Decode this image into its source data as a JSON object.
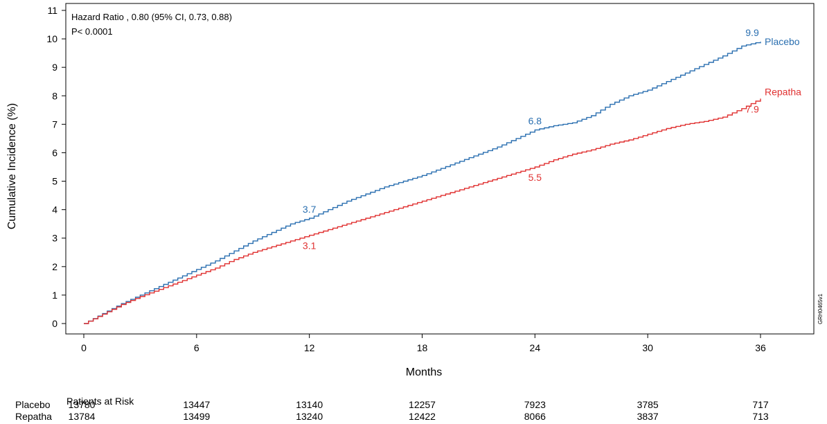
{
  "chart_data": {
    "type": "line",
    "xlabel": "Months",
    "ylabel": "Cumulative Incidence (%)",
    "xlim": [
      0,
      37.5
    ],
    "ylim": [
      0,
      11
    ],
    "xticks": [
      0,
      6,
      12,
      18,
      24,
      30,
      36
    ],
    "yticks": [
      0,
      1,
      2,
      3,
      4,
      5,
      6,
      7,
      8,
      9,
      10,
      11
    ],
    "annotation_line1": "Hazard  Ratio , 0.80 (95% CI, 0.73, 0.88)",
    "annotation_line2": "P< 0.0001",
    "side_code": "GRH0465v1",
    "series": [
      {
        "name": "Placebo",
        "color": "#2a6fb0",
        "x": [
          0,
          1,
          2,
          3,
          4,
          5,
          6,
          7,
          8,
          9,
          10,
          11,
          12,
          13,
          14,
          15,
          16,
          17,
          18,
          19,
          20,
          21,
          22,
          23,
          24,
          25,
          26,
          27,
          28,
          29,
          30,
          31,
          32,
          33,
          34,
          35,
          36
        ],
        "y": [
          0,
          0.35,
          0.7,
          1.0,
          1.3,
          1.6,
          1.9,
          2.2,
          2.55,
          2.9,
          3.2,
          3.5,
          3.7,
          4.0,
          4.3,
          4.55,
          4.8,
          5.0,
          5.2,
          5.45,
          5.7,
          5.95,
          6.2,
          6.5,
          6.8,
          6.95,
          7.05,
          7.3,
          7.7,
          8.0,
          8.2,
          8.5,
          8.8,
          9.1,
          9.4,
          9.75,
          9.9
        ]
      },
      {
        "name": "Repatha",
        "color": "#e03131",
        "x": [
          0,
          1,
          2,
          3,
          4,
          5,
          6,
          7,
          8,
          9,
          10,
          11,
          12,
          13,
          14,
          15,
          16,
          17,
          18,
          19,
          20,
          21,
          22,
          23,
          24,
          25,
          26,
          27,
          28,
          29,
          30,
          31,
          32,
          33,
          34,
          35,
          36
        ],
        "y": [
          0,
          0.33,
          0.67,
          0.95,
          1.2,
          1.45,
          1.7,
          1.95,
          2.25,
          2.5,
          2.7,
          2.9,
          3.1,
          3.3,
          3.5,
          3.7,
          3.9,
          4.1,
          4.3,
          4.5,
          4.7,
          4.9,
          5.1,
          5.3,
          5.5,
          5.75,
          5.95,
          6.1,
          6.3,
          6.45,
          6.65,
          6.85,
          7.0,
          7.1,
          7.25,
          7.55,
          7.9
        ]
      }
    ],
    "point_labels": [
      {
        "series": "Placebo",
        "x": 12,
        "y": 3.7,
        "text": "3.7"
      },
      {
        "series": "Placebo",
        "x": 24,
        "y": 6.8,
        "text": "6.8"
      },
      {
        "series": "Placebo",
        "x": 36,
        "y": 9.9,
        "text": "9.9"
      },
      {
        "series": "Repatha",
        "x": 12,
        "y": 3.1,
        "text": "3.1"
      },
      {
        "series": "Repatha",
        "x": 24,
        "y": 5.5,
        "text": "5.5"
      },
      {
        "series": "Repatha",
        "x": 36,
        "y": 7.9,
        "text": "7.9"
      }
    ],
    "series_end_labels": [
      "Placebo",
      "Repatha"
    ],
    "grid": false,
    "risk_table": {
      "title": "Patients at Risk",
      "timepoints": [
        0,
        6,
        12,
        18,
        24,
        30,
        36
      ],
      "rows": [
        {
          "label": "Placebo",
          "values": [
            "13780",
            "13447",
            "13140",
            "12257",
            "7923",
            "3785",
            "717"
          ]
        },
        {
          "label": "Repatha",
          "values": [
            "13784",
            "13499",
            "13240",
            "12422",
            "8066",
            "3837",
            "713"
          ]
        }
      ]
    }
  }
}
